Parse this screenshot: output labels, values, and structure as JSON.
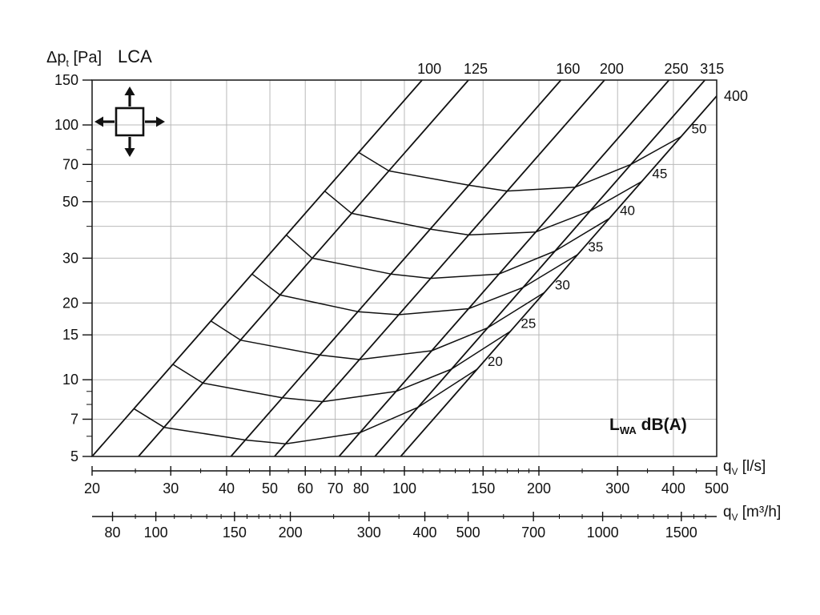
{
  "title": "LCA",
  "labels": {
    "y_title": {
      "pre": "Δp",
      "sub": "t",
      "post": " [Pa]"
    },
    "x1_title": {
      "pre": "q",
      "sub": "V",
      "post": " [l/s]"
    },
    "x2_title": {
      "pre": "q",
      "sub": "V",
      "post": " [m³/h]"
    },
    "legend": {
      "pre": "L",
      "sub": "WA",
      "post": " dB(A)"
    }
  },
  "icon": {
    "name": "damper-icon"
  },
  "colors": {
    "curve": "#111111",
    "grid": "#b9b9b9",
    "border": "#222222",
    "text": "#111111"
  },
  "chart_data": {
    "type": "line",
    "title": "LCA",
    "xlabel": "qV [l/s]",
    "xlabel2": "qV [m³/h]",
    "ylabel": "Δpt [Pa]",
    "legend": "LWA dB(A)",
    "scale": "log-log",
    "grid": true,
    "xlim": [
      20,
      500
    ],
    "ylim": [
      5,
      150
    ],
    "m3h_per_ls": 3.6,
    "x_ticks_ls": [
      20,
      30,
      40,
      50,
      60,
      70,
      80,
      100,
      150,
      200,
      300,
      400,
      500
    ],
    "x_minor_ls": [
      25,
      35,
      45,
      55,
      65,
      75,
      90,
      110,
      120,
      130,
      140,
      160,
      170,
      180,
      190,
      250,
      350,
      450
    ],
    "x_ticks_m3h": [
      80,
      100,
      150,
      200,
      300,
      400,
      500,
      700,
      1000,
      1500
    ],
    "x_minor_m3h": [
      90,
      110,
      120,
      130,
      140,
      160,
      170,
      180,
      190,
      250,
      350,
      450,
      600,
      800,
      900,
      1100,
      1200,
      1300,
      1400,
      1600,
      1700
    ],
    "y_ticks": [
      150,
      100,
      70,
      50,
      30,
      20,
      15,
      10,
      7,
      5
    ],
    "y_minor": [
      6,
      8,
      9,
      40,
      60,
      80
    ],
    "y_extra_grid": [
      40
    ],
    "diameter_lines": [
      {
        "label": "100",
        "q_at_5pa": 20.0
      },
      {
        "label": "125",
        "q_at_5pa": 25.4
      },
      {
        "label": "160",
        "q_at_5pa": 40.9
      },
      {
        "label": "200",
        "q_at_5pa": 51.2
      },
      {
        "label": "250",
        "q_at_5pa": 71.4
      },
      {
        "label": "315",
        "q_at_5pa": 85.9
      },
      {
        "label": "400",
        "q_at_5pa": 98.1
      }
    ],
    "lwa_curves": [
      {
        "label": "20",
        "points": [
          [
            24.8,
            7.7
          ],
          [
            29.0,
            6.5
          ],
          [
            44.1,
            5.8
          ],
          [
            54.2,
            5.6
          ],
          [
            79.5,
            6.2
          ],
          [
            107.3,
            7.8
          ],
          [
            145.5,
            11
          ]
        ]
      },
      {
        "label": "25",
        "points": [
          [
            30.3,
            11.5
          ],
          [
            35.4,
            9.7
          ],
          [
            53.3,
            8.5
          ],
          [
            65.6,
            8.2
          ],
          [
            95.8,
            9
          ],
          [
            127.4,
            11
          ],
          [
            172.7,
            15.5
          ]
        ]
      },
      {
        "label": "30",
        "points": [
          [
            36.9,
            17
          ],
          [
            43.0,
            14.3
          ],
          [
            64.7,
            12.5
          ],
          [
            79.3,
            12
          ],
          [
            115.1,
            13
          ],
          [
            153.7,
            16
          ],
          [
            205.8,
            22
          ]
        ]
      },
      {
        "label": "35",
        "points": [
          [
            45.6,
            26
          ],
          [
            52.7,
            21.5
          ],
          [
            78.7,
            18.5
          ],
          [
            97.1,
            18
          ],
          [
            139.2,
            19
          ],
          [
            184.2,
            23
          ],
          [
            244.3,
            31
          ]
        ]
      },
      {
        "label": "40",
        "points": [
          [
            54.4,
            37
          ],
          [
            62.2,
            30
          ],
          [
            93.3,
            26
          ],
          [
            114.5,
            25
          ],
          [
            162.8,
            26
          ],
          [
            217.3,
            32
          ],
          [
            287.7,
            43
          ]
        ]
      },
      {
        "label": "45",
        "points": [
          [
            66.3,
            55
          ],
          [
            76.2,
            45
          ],
          [
            114.2,
            39
          ],
          [
            139.3,
            37
          ],
          [
            196.8,
            38
          ],
          [
            260.6,
            46
          ],
          [
            339.8,
            60
          ]
        ]
      },
      {
        "label": "50",
        "points": [
          [
            79.0,
            78
          ],
          [
            92.3,
            66
          ],
          [
            139.3,
            58
          ],
          [
            169.8,
            55
          ],
          [
            241.1,
            57
          ],
          [
            321.4,
            70
          ],
          [
            416.2,
            90
          ]
        ]
      }
    ]
  }
}
